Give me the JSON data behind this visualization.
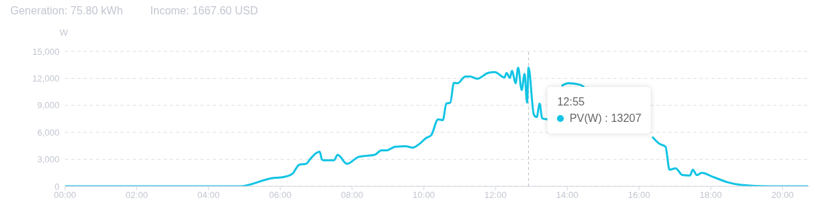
{
  "chart_data": {
    "type": "line",
    "title": "Generation: 75.80 kWh",
    "subtitle": "Income: 1667.60 USD",
    "ylabel": "W",
    "x": [
      0,
      4.87,
      5.76,
      6.11,
      6.34,
      6.53,
      6.72,
      6.83,
      7.0,
      7.1,
      7.16,
      7.21,
      7.5,
      7.6,
      7.86,
      8.17,
      8.3,
      8.63,
      8.82,
      8.97,
      9.2,
      9.5,
      9.69,
      9.89,
      10.06,
      10.21,
      10.4,
      10.53,
      10.63,
      10.74,
      10.84,
      10.94,
      11.16,
      11.3,
      11.49,
      11.79,
      11.98,
      12.25,
      12.31,
      12.4,
      12.46,
      12.56,
      12.63,
      12.73,
      12.81,
      12.88,
      12.92,
      13.07,
      13.15,
      13.23,
      13.3,
      13.45,
      13.6,
      13.84,
      14.03,
      14.35,
      14.47,
      15.5,
      16.37,
      16.56,
      16.74,
      16.85,
      17.02,
      17.21,
      17.42,
      17.5,
      17.61,
      17.75,
      18.03,
      18.47,
      18.85,
      19.62,
      20.71
    ],
    "series": [
      {
        "color": "#12c4e4",
        "values": [
          0,
          0,
          900,
          1050,
          1400,
          2400,
          2500,
          3000,
          3700,
          3850,
          3000,
          2900,
          2900,
          3500,
          2500,
          3250,
          3350,
          3500,
          4000,
          4000,
          4400,
          4450,
          4300,
          4750,
          5350,
          5700,
          7450,
          7350,
          9200,
          9300,
          11500,
          11450,
          12200,
          12200,
          11950,
          12600,
          12700,
          12100,
          12600,
          12050,
          12850,
          11450,
          13200,
          10700,
          12500,
          9300,
          13207,
          7950,
          7700,
          9200,
          7550,
          7450,
          null,
          11150,
          11450,
          11300,
          11050,
          null,
          5500,
          4750,
          4400,
          1850,
          2000,
          1250,
          1200,
          1850,
          1250,
          1500,
          1100,
          450,
          150,
          0,
          0
        ]
      }
    ],
    "xlim": [
      0,
      20.75
    ],
    "xticks": [
      {
        "value": 0,
        "label": "00:00"
      },
      {
        "value": 2,
        "label": "02:00"
      },
      {
        "value": 4,
        "label": "04:00"
      },
      {
        "value": 6,
        "label": "06:00"
      },
      {
        "value": 8,
        "label": "08:00"
      },
      {
        "value": 10,
        "label": "10:00"
      },
      {
        "value": 12,
        "label": "12:00"
      },
      {
        "value": 14,
        "label": "14:00"
      },
      {
        "value": 16,
        "label": "16:00"
      },
      {
        "value": 18,
        "label": "18:00"
      },
      {
        "value": 20,
        "label": "20:00"
      }
    ],
    "ylim": [
      0,
      15000
    ],
    "yticks": [
      0,
      {
        "value": 3000,
        "label": "3,000"
      },
      {
        "value": 6000,
        "label": "6,000"
      },
      {
        "value": 9000,
        "label": "9,000"
      },
      {
        "value": 12000,
        "label": "12,000"
      },
      {
        "value": 15000,
        "label": "15,000"
      }
    ],
    "grid": "y",
    "ref_lines": [
      {
        "axis": "x",
        "value": 12.92,
        "color": "#b8bcc6",
        "line_style": "dashed"
      }
    ],
    "annotations": [
      "12:55",
      "PV(W) : 13207"
    ]
  }
}
